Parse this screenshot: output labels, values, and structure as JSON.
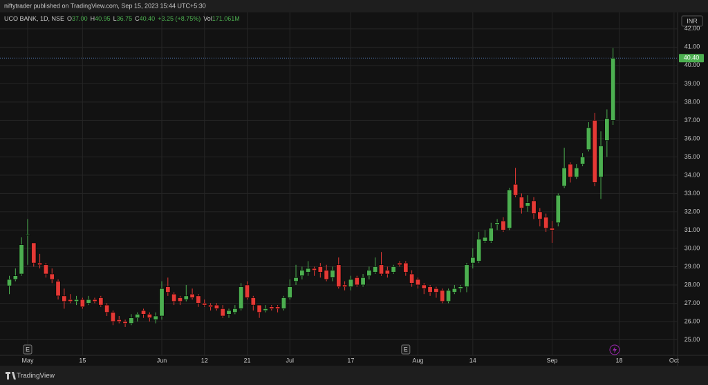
{
  "header": {
    "publisher_line": "niftytrader published on TradingView.com, Sep 15, 2023 15:44 UTC+5:30"
  },
  "chart_data": {
    "type": "candlestick",
    "symbol": "UCO BANK, 1D, NSE",
    "legend_items": [
      {
        "key": "O",
        "value": "37.00"
      },
      {
        "key": "H",
        "value": "40.95"
      },
      {
        "key": "L",
        "value": "36.75"
      },
      {
        "key": "C",
        "value": "40.40"
      },
      {
        "value": "+3.25 (+8.75%)"
      },
      {
        "key": "Vol",
        "value": "171.061M"
      }
    ],
    "currency": "INR",
    "categories": [
      null,
      null,
      null,
      "May",
      null,
      null,
      null,
      null,
      null,
      null,
      null,
      null,
      "15",
      null,
      null,
      null,
      null,
      null,
      null,
      null,
      null,
      null,
      null,
      null,
      null,
      "Jun",
      null,
      null,
      null,
      null,
      null,
      null,
      "12",
      null,
      null,
      null,
      null,
      null,
      null,
      "21",
      null,
      null,
      null,
      null,
      null,
      null,
      "Jul",
      null,
      null,
      null,
      null,
      null,
      null,
      null,
      null,
      null,
      "17",
      null,
      null,
      null,
      null,
      null,
      null,
      null,
      null,
      null,
      null,
      "Aug",
      null,
      null,
      null,
      null,
      null,
      null,
      null,
      null,
      "14",
      null,
      null,
      null,
      null,
      null,
      null,
      null,
      null,
      null,
      null,
      null,
      null,
      "Sep",
      null,
      null,
      null,
      null,
      null,
      null,
      null,
      null,
      null,
      null,
      "18",
      null,
      null,
      null,
      null,
      null,
      null,
      null,
      null,
      "Oct"
    ],
    "open": [
      27.95,
      28.3,
      28.6,
      30.7,
      30.3,
      29.2,
      29.1,
      28.6,
      28.2,
      27.4,
      27.2,
      27.1,
      27.2,
      27.0,
      27.2,
      27.3,
      26.9,
      26.5,
      26.1,
      26.0,
      25.9,
      26.2,
      26.6,
      26.4,
      26.1,
      26.3,
      27.9,
      27.5,
      27.3,
      27.2,
      27.5,
      27.4,
      27.0,
      26.9,
      26.9,
      26.7,
      26.4,
      26.5,
      26.7,
      28.0,
      27.3,
      26.9,
      26.6,
      26.8,
      26.8,
      26.7,
      27.3,
      28.2,
      28.5,
      28.7,
      28.9,
      29.0,
      28.8,
      28.4,
      29.1,
      28.0,
      27.9,
      28.4,
      28.0,
      28.5,
      28.7,
      29.1,
      28.8,
      28.7,
      29.2,
      29.2,
      28.6,
      28.3,
      28.0,
      27.9,
      27.8,
      27.7,
      27.1,
      27.6,
      27.8,
      27.9,
      29.2,
      29.3,
      30.4,
      30.4,
      31.3,
      31.5,
      31.1,
      33.5,
      32.8,
      32.3,
      32.6,
      32.0,
      31.7,
      31.1,
      31.4,
      33.4,
      34.6,
      33.9,
      34.6,
      35.4,
      37.0,
      33.9,
      35.9,
      37.0,
      null,
      null,
      null,
      null,
      null,
      null,
      null,
      null,
      null,
      null
    ],
    "high": [
      28.5,
      28.9,
      30.6,
      31.6,
      30.3,
      29.7,
      29.2,
      28.9,
      28.3,
      27.8,
      27.5,
      27.4,
      27.3,
      27.4,
      27.3,
      27.4,
      27.0,
      26.6,
      26.3,
      26.1,
      26.4,
      26.5,
      26.7,
      26.5,
      26.5,
      28.2,
      28.4,
      27.6,
      27.4,
      28.0,
      27.8,
      27.5,
      27.2,
      27.0,
      27.0,
      26.9,
      26.7,
      26.9,
      28.1,
      28.2,
      27.4,
      26.9,
      26.9,
      26.9,
      26.9,
      27.4,
      28.3,
      29.1,
      29.0,
      29.3,
      29.0,
      29.2,
      29.1,
      29.0,
      29.5,
      28.2,
      28.5,
      28.5,
      28.6,
      29.0,
      29.5,
      29.8,
      29.0,
      29.1,
      29.3,
      29.3,
      28.8,
      28.4,
      28.1,
      28.0,
      27.9,
      27.8,
      27.8,
      28.0,
      28.0,
      29.2,
      30.0,
      30.9,
      31.0,
      31.4,
      31.6,
      31.7,
      33.3,
      34.4,
      33.0,
      32.9,
      32.8,
      32.2,
      31.9,
      31.5,
      33.0,
      35.5,
      34.7,
      34.6,
      35.2,
      36.9,
      37.4,
      36.4,
      37.6,
      40.95,
      null,
      null,
      null,
      null,
      null,
      null,
      null,
      null,
      null,
      null
    ],
    "low": [
      27.5,
      28.2,
      28.5,
      29.1,
      29.0,
      28.9,
      28.4,
      28.1,
      27.2,
      26.7,
      27.0,
      26.9,
      26.7,
      26.9,
      27.0,
      26.8,
      26.3,
      25.8,
      25.9,
      25.7,
      25.8,
      26.0,
      26.2,
      26.0,
      25.9,
      26.1,
      27.4,
      26.9,
      26.9,
      27.1,
      27.2,
      26.8,
      26.8,
      26.6,
      26.6,
      26.2,
      26.2,
      26.4,
      26.6,
      27.2,
      26.6,
      26.2,
      26.5,
      26.6,
      26.5,
      26.6,
      27.2,
      28.0,
      28.3,
      28.5,
      28.5,
      28.4,
      28.2,
      28.2,
      27.8,
      27.7,
      27.7,
      27.9,
      27.9,
      28.3,
      28.6,
      28.5,
      28.4,
      28.6,
      29.0,
      28.5,
      27.9,
      27.8,
      27.5,
      27.4,
      27.3,
      27.0,
      27.0,
      27.5,
      27.6,
      27.6,
      28.9,
      29.2,
      30.3,
      30.3,
      31.0,
      30.9,
      31.0,
      32.8,
      31.9,
      32.0,
      31.6,
      31.2,
      30.9,
      30.3,
      31.2,
      33.3,
      33.6,
      33.8,
      34.5,
      35.3,
      33.4,
      32.7,
      35.0,
      36.75,
      null,
      null,
      null,
      null,
      null,
      null,
      null,
      null,
      null,
      null
    ],
    "close": [
      28.3,
      28.5,
      30.2,
      30.75,
      29.2,
      29.1,
      28.6,
      28.3,
      27.4,
      27.1,
      27.1,
      27.2,
      26.8,
      27.2,
      27.1,
      26.9,
      26.5,
      26.0,
      26.0,
      25.9,
      26.2,
      26.4,
      26.4,
      26.2,
      26.3,
      27.8,
      27.6,
      27.1,
      27.1,
      27.4,
      27.3,
      27.0,
      26.9,
      26.8,
      26.7,
      26.3,
      26.6,
      26.7,
      27.9,
      27.3,
      26.9,
      26.5,
      26.7,
      26.7,
      26.7,
      27.3,
      27.9,
      28.4,
      28.8,
      28.9,
      28.8,
      28.7,
      28.3,
      28.8,
      27.9,
      27.9,
      28.3,
      28.0,
      28.4,
      28.8,
      29.0,
      28.6,
      28.6,
      29.0,
      29.1,
      28.7,
      28.1,
      28.0,
      27.8,
      27.6,
      27.6,
      27.1,
      27.7,
      27.8,
      27.9,
      29.1,
      29.5,
      30.5,
      30.6,
      31.1,
      31.4,
      31.0,
      33.2,
      32.9,
      32.2,
      32.5,
      31.9,
      31.6,
      31.1,
      31.0,
      32.9,
      34.4,
      33.9,
      34.4,
      35.0,
      36.6,
      33.6,
      35.6,
      37.1,
      40.4,
      null,
      null,
      null,
      null,
      null,
      null,
      null,
      null,
      null,
      null
    ],
    "up_color": "#4caf50",
    "down_color": "#e53935",
    "ylim": [
      24.15,
      42.9
    ],
    "yticks": [
      {
        "value": 25,
        "label": "25.00"
      },
      {
        "value": 26,
        "label": "26.00"
      },
      {
        "value": 27,
        "label": "27.00"
      },
      {
        "value": 28,
        "label": "28.00"
      },
      {
        "value": 29,
        "label": "29.00"
      },
      {
        "value": 30,
        "label": "30.00"
      },
      {
        "value": 31,
        "label": "31.00"
      },
      {
        "value": 32,
        "label": "32.00"
      },
      {
        "value": 33,
        "label": "33.00"
      },
      {
        "value": 34,
        "label": "34.00"
      },
      {
        "value": 35,
        "label": "35.00"
      },
      {
        "value": 36,
        "label": "36.00"
      },
      {
        "value": 37,
        "label": "37.00"
      },
      {
        "value": 38,
        "label": "38.00"
      },
      {
        "value": 39,
        "label": "39.00"
      },
      {
        "value": 40,
        "label": "40.00"
      },
      {
        "value": 41,
        "label": "41.00"
      },
      {
        "value": 42,
        "label": "42.00"
      }
    ],
    "last_price": {
      "value": 40.4,
      "label": "40.40"
    },
    "grid": true,
    "events": [
      {
        "index": 3,
        "label": "E"
      },
      {
        "index": 65,
        "label": "E"
      }
    ]
  },
  "footer": {
    "brand": "TradingView"
  }
}
